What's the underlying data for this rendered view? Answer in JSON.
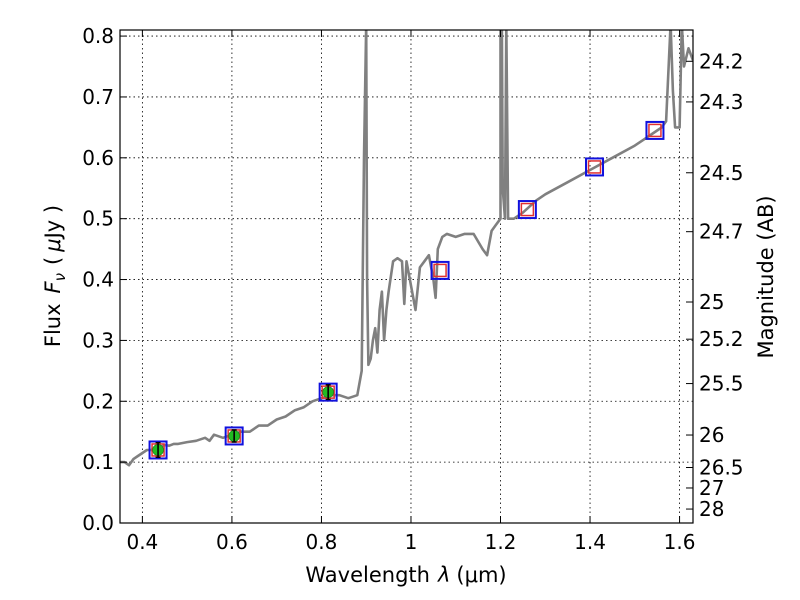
{
  "chart_data": {
    "type": "line",
    "xlabel": "Wavelength",
    "xlabel_symbol": "λ",
    "xlabel_unit": "(μm)",
    "ylabel": "Flux",
    "ylabel_symbol": "F",
    "ylabel_subscript": "ν",
    "ylabel_unit_open": "(",
    "ylabel_unit_mu": "μ",
    "ylabel_unit_rest": "Jy )",
    "y2label": "Magnitude (AB)",
    "xlim": [
      0.35,
      1.63
    ],
    "ylim": [
      0.0,
      0.81
    ],
    "grid": true,
    "x_ticks": [
      0.4,
      0.6,
      0.8,
      1.0,
      1.2,
      1.4,
      1.6
    ],
    "x_tick_labels": [
      "0.4",
      "0.6",
      "0.8",
      "1",
      "1.2",
      "1.4",
      "1.6"
    ],
    "y_ticks": [
      0.0,
      0.1,
      0.2,
      0.3,
      0.4,
      0.5,
      0.6,
      0.7,
      0.8
    ],
    "y_tick_labels": [
      "0.0",
      "0.1",
      "0.2",
      "0.3",
      "0.4",
      "0.5",
      "0.6",
      "0.7",
      "0.8"
    ],
    "mag_ticks": [
      "24.2",
      "24.3",
      "24.5",
      "24.7",
      "25",
      "25.2",
      "25.5",
      "26",
      "26.5",
      "27",
      "28"
    ],
    "model_color": "#808080",
    "observed_color": "#22bb22",
    "model_box_color": "#e03030",
    "frame_box_color": "#1010dd",
    "series": [
      {
        "name": "model spectrum",
        "x": [
          0.35,
          0.36,
          0.37,
          0.38,
          0.39,
          0.4,
          0.41,
          0.42,
          0.43,
          0.44,
          0.45,
          0.46,
          0.47,
          0.48,
          0.5,
          0.52,
          0.54,
          0.55,
          0.56,
          0.58,
          0.6,
          0.62,
          0.64,
          0.66,
          0.68,
          0.7,
          0.72,
          0.74,
          0.76,
          0.78,
          0.8,
          0.82,
          0.84,
          0.86,
          0.88,
          0.89,
          0.895,
          0.9,
          0.902,
          0.905,
          0.91,
          0.915,
          0.92,
          0.925,
          0.93,
          0.935,
          0.94,
          0.945,
          0.95,
          0.96,
          0.97,
          0.98,
          0.985,
          0.99,
          1.0,
          1.01,
          1.02,
          1.03,
          1.04,
          1.05,
          1.055,
          1.06,
          1.07,
          1.08,
          1.1,
          1.12,
          1.14,
          1.16,
          1.17,
          1.18,
          1.19,
          1.2,
          1.2,
          1.203,
          1.205,
          1.21,
          1.213,
          1.217,
          1.23,
          1.25,
          1.28,
          1.3,
          1.35,
          1.4,
          1.45,
          1.5,
          1.52,
          1.54,
          1.56,
          1.57,
          1.58,
          1.585,
          1.59,
          1.6,
          1.605,
          1.61,
          1.62,
          1.63
        ],
        "y": [
          0.1,
          0.1,
          0.095,
          0.105,
          0.11,
          0.115,
          0.12,
          0.12,
          0.125,
          0.125,
          0.128,
          0.127,
          0.13,
          0.13,
          0.133,
          0.135,
          0.14,
          0.135,
          0.145,
          0.14,
          0.145,
          0.15,
          0.15,
          0.16,
          0.16,
          0.17,
          0.175,
          0.185,
          0.19,
          0.2,
          0.205,
          0.21,
          0.21,
          0.205,
          0.21,
          0.25,
          0.6,
          0.82,
          0.4,
          0.26,
          0.27,
          0.3,
          0.32,
          0.28,
          0.35,
          0.38,
          0.3,
          0.35,
          0.38,
          0.43,
          0.435,
          0.43,
          0.36,
          0.43,
          0.39,
          0.35,
          0.42,
          0.43,
          0.44,
          0.4,
          0.37,
          0.45,
          0.47,
          0.475,
          0.47,
          0.475,
          0.475,
          0.45,
          0.44,
          0.48,
          0.49,
          0.5,
          0.82,
          0.81,
          0.55,
          0.5,
          0.82,
          0.5,
          0.5,
          0.51,
          0.53,
          0.54,
          0.56,
          0.58,
          0.6,
          0.62,
          0.63,
          0.64,
          0.65,
          0.66,
          0.82,
          0.71,
          0.65,
          0.65,
          0.82,
          0.75,
          0.78,
          0.76
        ]
      },
      {
        "name": "observed photometry",
        "x": [
          0.435,
          0.605,
          0.815
        ],
        "y": [
          0.12,
          0.143,
          0.215
        ],
        "yerr": [
          0.012,
          0.01,
          0.012
        ]
      },
      {
        "name": "model photometry",
        "x": [
          0.435,
          0.605,
          0.815,
          1.065,
          1.26,
          1.41,
          1.545
        ],
        "y": [
          0.12,
          0.143,
          0.215,
          0.415,
          0.515,
          0.585,
          0.645
        ]
      }
    ]
  }
}
